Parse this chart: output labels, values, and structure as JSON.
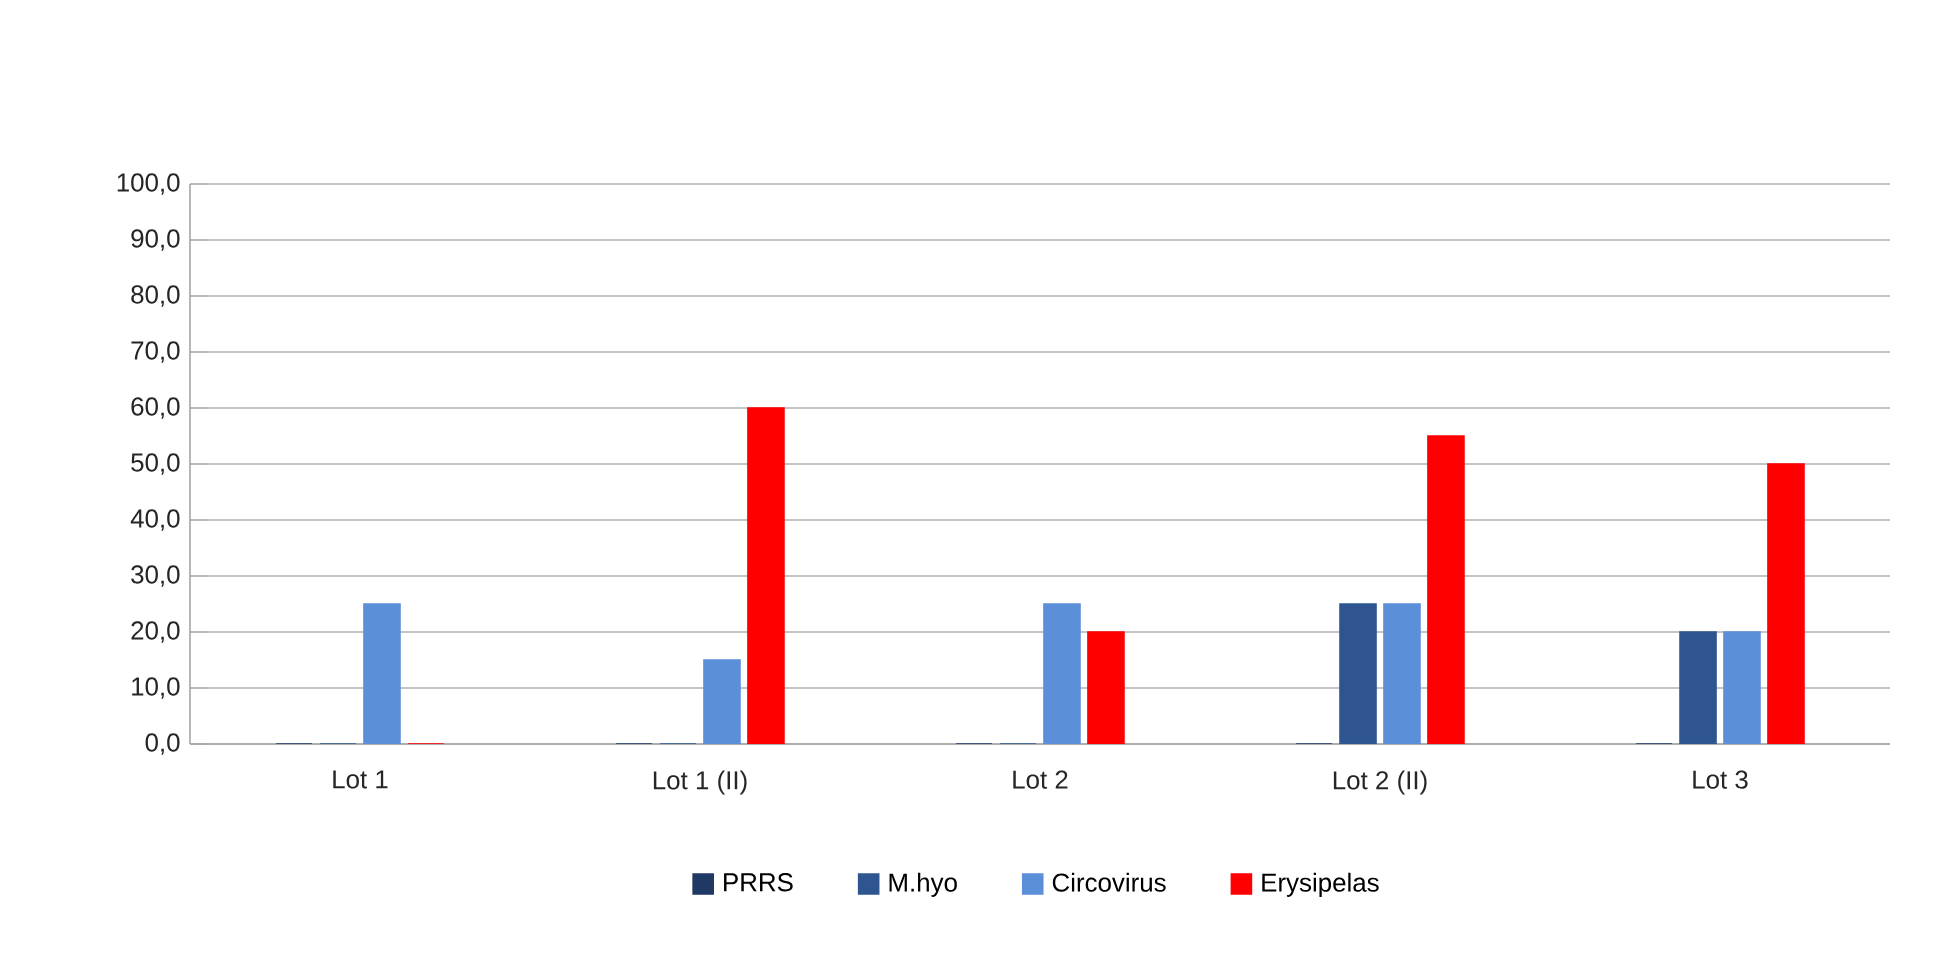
{
  "chart_data": {
    "type": "bar",
    "categories": [
      "Lot 1",
      "Lot 1  (II)",
      "Lot 2",
      "Lot 2  (II)",
      "Lot 3"
    ],
    "series": [
      {
        "name": "PRRS",
        "color": "#1f3864",
        "values": [
          0,
          0,
          0,
          0,
          0
        ]
      },
      {
        "name": "M.hyo",
        "color": "#2e5590",
        "values": [
          0,
          0,
          0,
          25,
          20
        ]
      },
      {
        "name": "Circovirus",
        "color": "#5b8fd8",
        "values": [
          25,
          15,
          25,
          25,
          20
        ]
      },
      {
        "name": "Erysipelas",
        "color": "#ff0000",
        "values": [
          0,
          60,
          20,
          55,
          50
        ]
      }
    ],
    "ylim": [
      0,
      100
    ],
    "yticks": [
      {
        "value": 0,
        "label": "0,0"
      },
      {
        "value": 10,
        "label": "10,0"
      },
      {
        "value": 20,
        "label": "20,0"
      },
      {
        "value": 30,
        "label": "30,0"
      },
      {
        "value": 40,
        "label": "40,0"
      },
      {
        "value": 50,
        "label": "50,0"
      },
      {
        "value": 60,
        "label": "60,0"
      },
      {
        "value": 70,
        "label": "70,0"
      },
      {
        "value": 80,
        "label": "80,0"
      },
      {
        "value": 90,
        "label": "90,0"
      },
      {
        "value": 100,
        "label": "100,0"
      }
    ],
    "grid": "y",
    "legend": "bottom"
  }
}
